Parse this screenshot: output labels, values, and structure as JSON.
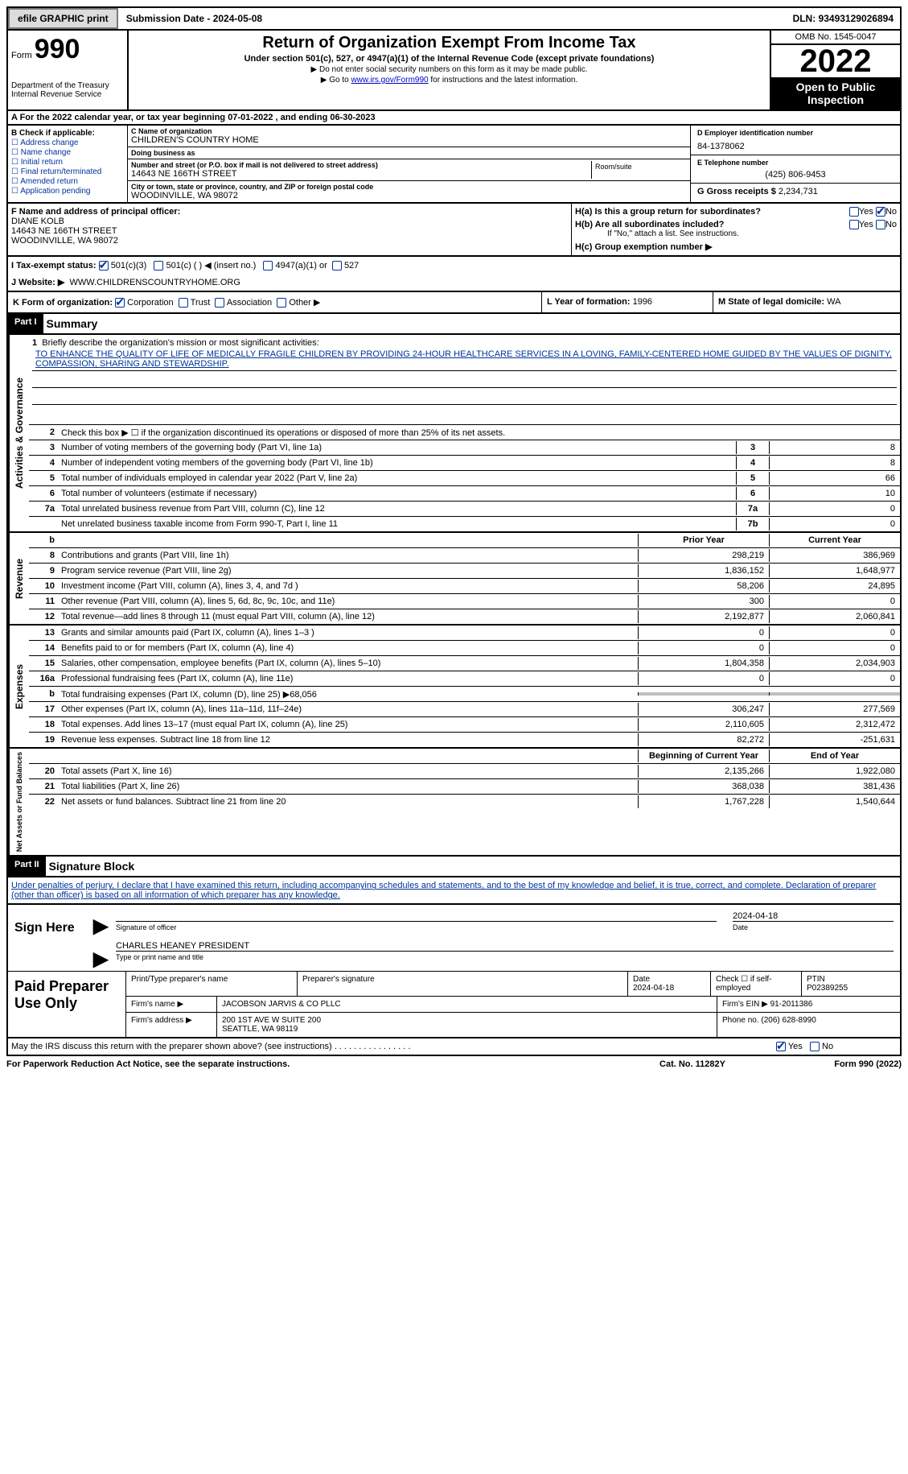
{
  "topbar": {
    "efile_btn": "efile GRAPHIC print",
    "submission": "Submission Date - 2024-05-08",
    "dln": "DLN: 93493129026894"
  },
  "header": {
    "form_word": "Form",
    "form_num": "990",
    "dept": "Department of the Treasury\nInternal Revenue Service",
    "title": "Return of Organization Exempt From Income Tax",
    "sub1": "Under section 501(c), 527, or 4947(a)(1) of the Internal Revenue Code (except private foundations)",
    "sub2a": "▶ Do not enter social security numbers on this form as it may be made public.",
    "sub2b": "▶ Go to ",
    "sub2b_link": "www.irs.gov/Form990",
    "sub2b_after": " for instructions and the latest information.",
    "omb": "OMB No. 1545-0047",
    "year": "2022",
    "open": "Open to Public Inspection"
  },
  "period": "A For the 2022 calendar year, or tax year beginning 07-01-2022    , and ending 06-30-2023",
  "section_b": {
    "b_label": "B Check if applicable:",
    "checks": [
      "Address change",
      "Name change",
      "Initial return",
      "Final return/terminated",
      "Amended return",
      "Application pending"
    ],
    "c_name_lbl": "C Name of organization",
    "c_name": "CHILDREN'S COUNTRY HOME",
    "dba_lbl": "Doing business as",
    "dba": "",
    "addr_lbl": "Number and street (or P.O. box if mail is not delivered to street address)",
    "addr": "14643 NE 166TH STREET",
    "room_lbl": "Room/suite",
    "city_lbl": "City or town, state or province, country, and ZIP or foreign postal code",
    "city": "WOODINVILLE, WA  98072",
    "d_lbl": "D Employer identification number",
    "d_val": "84-1378062",
    "e_lbl": "E Telephone number",
    "e_val": "(425) 806-9453",
    "g_lbl": "G Gross receipts $",
    "g_val": "2,234,731"
  },
  "row_f": {
    "f_lbl": "F Name and address of principal officer:",
    "officer": "DIANE KOLB",
    "addr1": "14643 NE 166TH STREET",
    "addr2": "WOODINVILLE, WA  98072",
    "ha": "H(a)  Is this a group return for subordinates?",
    "hb": "H(b)  Are all subordinates included?",
    "hb_note": "If \"No,\" attach a list. See instructions.",
    "hc": "H(c)  Group exemption number ▶"
  },
  "row_i": {
    "lbl": "I   Tax-exempt status:",
    "o1": "501(c)(3)",
    "o2": "501(c) (  ) ◀ (insert no.)",
    "o3": "4947(a)(1) or",
    "o4": "527"
  },
  "row_j": {
    "lbl": "J   Website: ▶",
    "val": "WWW.CHILDRENSCOUNTRYHOME.ORG"
  },
  "row_k": {
    "k_lbl": "K Form of organization:",
    "k_opts": [
      "Corporation",
      "Trust",
      "Association",
      "Other ▶"
    ],
    "l_lbl": "L Year of formation:",
    "l_val": "1996",
    "m_lbl": "M State of legal domicile:",
    "m_val": "WA"
  },
  "part1": {
    "header": "Part I",
    "title": "Summary",
    "q1_lbl": "1",
    "q1": "Briefly describe the organization's mission or most significant activities:",
    "mission": "TO ENHANCE THE QUALITY OF LIFE OF MEDICALLY FRAGILE CHILDREN BY PROVIDING 24-HOUR HEALTHCARE SERVICES IN A LOVING, FAMILY-CENTERED HOME GUIDED BY THE VALUES OF DIGNITY, COMPASSION, SHARING AND STEWARDSHIP.",
    "q2": "Check this box ▶ ☐  if the organization discontinued its operations or disposed of more than 25% of its net assets."
  },
  "governance_rows": [
    {
      "n": "3",
      "d": "Number of voting members of the governing body (Part VI, line 1a)",
      "b": "3",
      "v": "8"
    },
    {
      "n": "4",
      "d": "Number of independent voting members of the governing body (Part VI, line 1b)",
      "b": "4",
      "v": "8"
    },
    {
      "n": "5",
      "d": "Total number of individuals employed in calendar year 2022 (Part V, line 2a)",
      "b": "5",
      "v": "66"
    },
    {
      "n": "6",
      "d": "Total number of volunteers (estimate if necessary)",
      "b": "6",
      "v": "10"
    },
    {
      "n": "7a",
      "d": "Total unrelated business revenue from Part VIII, column (C), line 12",
      "b": "7a",
      "v": "0"
    },
    {
      "n": "",
      "d": "Net unrelated business taxable income from Form 990-T, Part I, line 11",
      "b": "7b",
      "v": "0"
    }
  ],
  "col_headers": {
    "prior": "Prior Year",
    "current": "Current Year"
  },
  "revenue_rows": [
    {
      "n": "8",
      "d": "Contributions and grants (Part VIII, line 1h)",
      "p": "298,219",
      "c": "386,969"
    },
    {
      "n": "9",
      "d": "Program service revenue (Part VIII, line 2g)",
      "p": "1,836,152",
      "c": "1,648,977"
    },
    {
      "n": "10",
      "d": "Investment income (Part VIII, column (A), lines 3, 4, and 7d )",
      "p": "58,206",
      "c": "24,895"
    },
    {
      "n": "11",
      "d": "Other revenue (Part VIII, column (A), lines 5, 6d, 8c, 9c, 10c, and 11e)",
      "p": "300",
      "c": "0"
    },
    {
      "n": "12",
      "d": "Total revenue—add lines 8 through 11 (must equal Part VIII, column (A), line 12)",
      "p": "2,192,877",
      "c": "2,060,841"
    }
  ],
  "expense_rows": [
    {
      "n": "13",
      "d": "Grants and similar amounts paid (Part IX, column (A), lines 1–3 )",
      "p": "0",
      "c": "0"
    },
    {
      "n": "14",
      "d": "Benefits paid to or for members (Part IX, column (A), line 4)",
      "p": "0",
      "c": "0"
    },
    {
      "n": "15",
      "d": "Salaries, other compensation, employee benefits (Part IX, column (A), lines 5–10)",
      "p": "1,804,358",
      "c": "2,034,903"
    },
    {
      "n": "16a",
      "d": "Professional fundraising fees (Part IX, column (A), line 11e)",
      "p": "0",
      "c": "0"
    },
    {
      "n": "b",
      "d": "Total fundraising expenses (Part IX, column (D), line 25) ▶68,056",
      "p": "",
      "c": "",
      "shade": true
    },
    {
      "n": "17",
      "d": "Other expenses (Part IX, column (A), lines 11a–11d, 11f–24e)",
      "p": "306,247",
      "c": "277,569"
    },
    {
      "n": "18",
      "d": "Total expenses. Add lines 13–17 (must equal Part IX, column (A), line 25)",
      "p": "2,110,605",
      "c": "2,312,472"
    },
    {
      "n": "19",
      "d": "Revenue less expenses. Subtract line 18 from line 12",
      "p": "82,272",
      "c": "-251,631"
    }
  ],
  "net_headers": {
    "begin": "Beginning of Current Year",
    "end": "End of Year"
  },
  "net_rows": [
    {
      "n": "20",
      "d": "Total assets (Part X, line 16)",
      "p": "2,135,266",
      "c": "1,922,080"
    },
    {
      "n": "21",
      "d": "Total liabilities (Part X, line 26)",
      "p": "368,038",
      "c": "381,436"
    },
    {
      "n": "22",
      "d": "Net assets or fund balances. Subtract line 21 from line 20",
      "p": "1,767,228",
      "c": "1,540,644"
    }
  ],
  "part2": {
    "header": "Part II",
    "title": "Signature Block",
    "penalty": "Under penalties of perjury, I declare that I have examined this return, including accompanying schedules and statements, and to the best of my knowledge and belief, it is true, correct, and complete. Declaration of preparer (other than officer) is based on all information of which preparer has any knowledge."
  },
  "sign": {
    "label": "Sign Here",
    "date": "2024-04-18",
    "sig_lbl": "Signature of officer",
    "date_lbl": "Date",
    "name": "CHARLES HEANEY PRESIDENT",
    "name_lbl": "Type or print name and title"
  },
  "prep": {
    "label": "Paid Preparer Use Only",
    "r1_a": "Print/Type preparer's name",
    "r1_b": "Preparer's signature",
    "r1_c_lbl": "Date",
    "r1_c": "2024-04-18",
    "r1_d": "Check ☐ if self-employed",
    "r1_e_lbl": "PTIN",
    "r1_e": "P02389255",
    "r2_a": "Firm's name    ▶",
    "r2_b": "JACOBSON JARVIS & CO PLLC",
    "r2_c": "Firm's EIN ▶",
    "r2_d": "91-2011386",
    "r3_a": "Firm's address ▶",
    "r3_b": "200 1ST AVE W SUITE 200",
    "r3_b2": "SEATTLE, WA  98119",
    "r3_c": "Phone no.",
    "r3_d": "(206) 628-8990"
  },
  "discuss": "May the IRS discuss this return with the preparer shown above? (see instructions)",
  "footer": {
    "left": "For Paperwork Reduction Act Notice, see the separate instructions.",
    "mid": "Cat. No. 11282Y",
    "right": "Form 990 (2022)"
  }
}
